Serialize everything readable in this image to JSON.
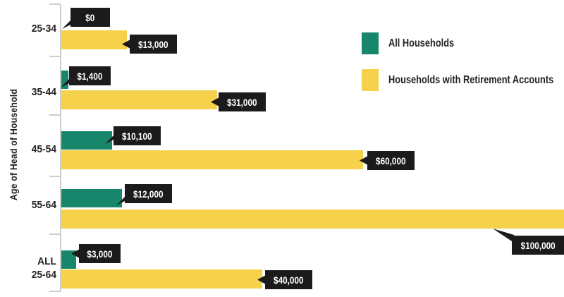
{
  "chart_data": {
    "type": "bar",
    "orientation": "horizontal",
    "title": "",
    "ylabel": "Age of Head of Household",
    "xlabel": "",
    "xmin": 0,
    "xmax": 100000,
    "grid": false,
    "legend_position": "top-right",
    "categories": [
      "25-34",
      "35-44",
      "45-54",
      "55-64",
      "ALL 25-64"
    ],
    "category_lines": [
      [
        "25-34"
      ],
      [
        "35-44"
      ],
      [
        "45-54"
      ],
      [
        "55-64"
      ],
      [
        "ALL",
        "25-64"
      ]
    ],
    "series": [
      {
        "name": "All Households",
        "color": "#17866b",
        "values": [
          0,
          1400,
          10100,
          12000,
          3000
        ],
        "data_labels": [
          "$0",
          "$1,400",
          "$10,100",
          "$12,000",
          "$3,000"
        ]
      },
      {
        "name": "Households with Retirement Accounts",
        "color": "#f5d14c",
        "values": [
          13000,
          31000,
          60000,
          100000,
          40000
        ],
        "data_labels": [
          "$13,000",
          "$31,000",
          "$60,000",
          "$100,000",
          "$40,000"
        ]
      }
    ]
  },
  "colors": {
    "green_series": "#17866b",
    "yellow_series": "#f5d14c",
    "callout_background": "#1c1a1a",
    "callout_text": "#ffffff",
    "axis_line": "#cdcdcd",
    "label_text": "#262223"
  }
}
